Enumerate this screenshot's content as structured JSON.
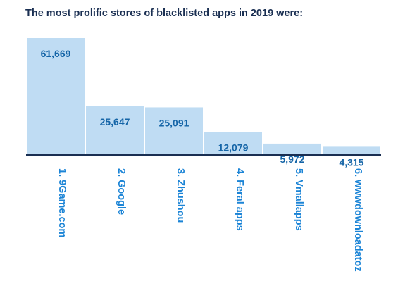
{
  "chart_data": {
    "type": "bar",
    "title": "The most prolific stores of blacklisted apps in 2019 were:",
    "categories": [
      "1. 9Game.com",
      "2. Google",
      "3. Zhushou",
      "4. Feral apps",
      "5. Vmallapps",
      "6. wwwdownloadatoz"
    ],
    "values": [
      61669,
      25647,
      25091,
      12079,
      5972,
      4315
    ],
    "value_labels": [
      "61,669",
      "25,647",
      "25,091",
      "12,079",
      "5,972",
      "4,315"
    ],
    "ylim": [
      0,
      61669
    ],
    "grid": false,
    "legend": "none",
    "colors": {
      "bar": "#bfdcf3",
      "baseline": "#1a2f52",
      "value_text": "#1565a7",
      "category_text": "#1b84d6",
      "title": "#1a2f52"
    }
  }
}
